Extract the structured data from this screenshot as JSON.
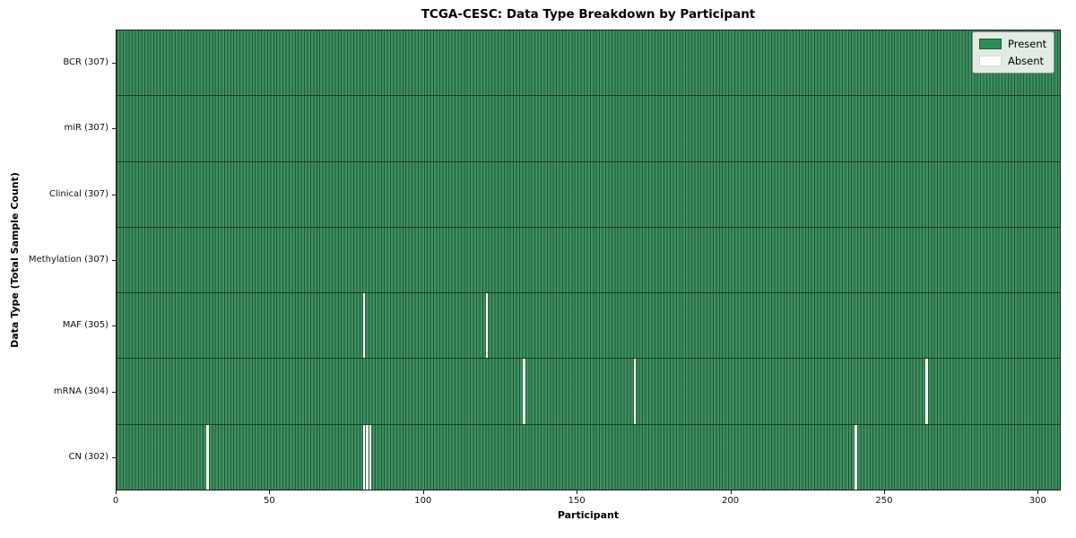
{
  "figure": {
    "title": "TCGA-CESC: Data Type Breakdown by Participant"
  },
  "chart_data": {
    "type": "heatmap",
    "title": "TCGA-CESC: Data Type Breakdown by Participant",
    "xlabel": "Participant",
    "ylabel": "Data Type (Total Sample Count)",
    "x_ticks": [
      0,
      50,
      100,
      150,
      200,
      250,
      300
    ],
    "xlim": [
      0,
      307.5
    ],
    "n_participants": 307,
    "grid": false,
    "colors": {
      "present": "#2e8b57",
      "absent": "#ffffff",
      "cell_fill": "#3e9160",
      "cell_border_dark": "#1e4d34"
    },
    "legend": {
      "position": "upper right",
      "entries": [
        {
          "label": "Present",
          "color": "#2e8b57"
        },
        {
          "label": "Absent",
          "color": "#ffffff"
        }
      ]
    },
    "rows": [
      {
        "data_type": "BCR",
        "label": "BCR (307)",
        "present_count": 307,
        "absent_participants": []
      },
      {
        "data_type": "miR",
        "label": "miR (307)",
        "present_count": 307,
        "absent_participants": []
      },
      {
        "data_type": "Clinical",
        "label": "Clinical (307)",
        "present_count": 307,
        "absent_participants": []
      },
      {
        "data_type": "Methylation",
        "label": "Methylation (307)",
        "present_count": 307,
        "absent_participants": []
      },
      {
        "data_type": "MAF",
        "label": "MAF (305)",
        "present_count": 305,
        "absent_participants": [
          80,
          120
        ]
      },
      {
        "data_type": "mRNA",
        "label": "mRNA (304)",
        "present_count": 304,
        "absent_participants": [
          132,
          168,
          263
        ]
      },
      {
        "data_type": "CN",
        "label": "CN (302)",
        "present_count": 302,
        "absent_participants": [
          29,
          80,
          81,
          82,
          240
        ]
      }
    ]
  }
}
